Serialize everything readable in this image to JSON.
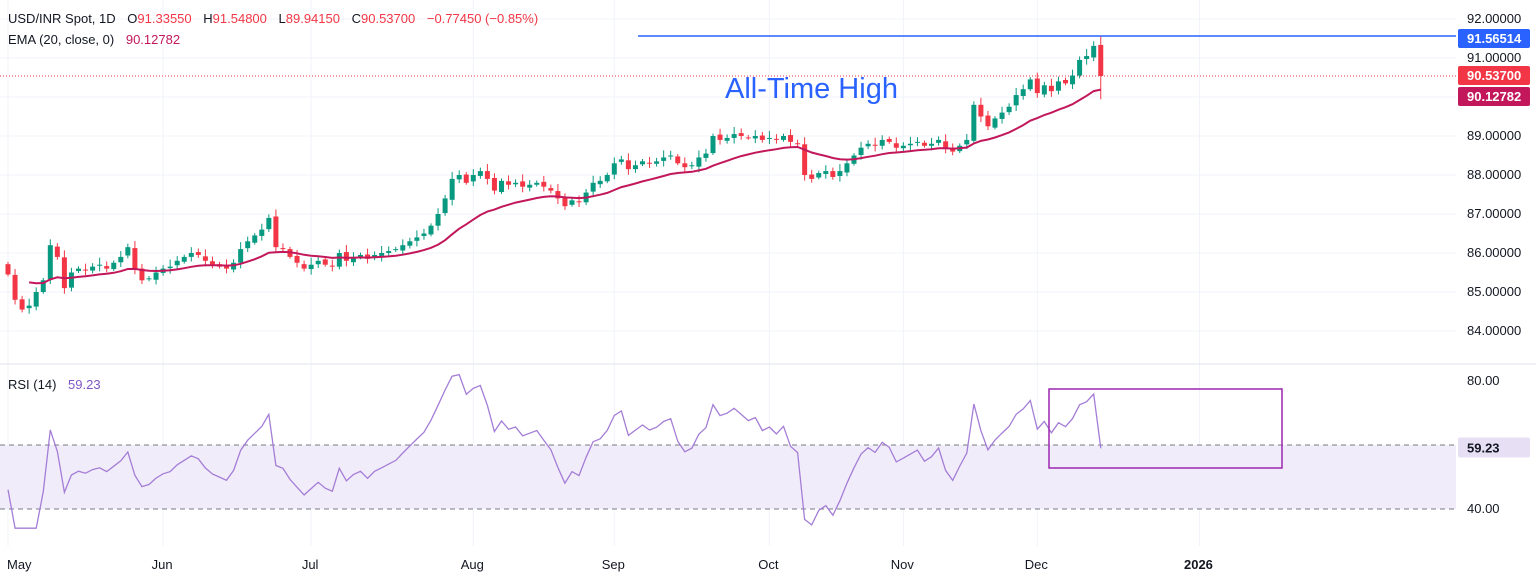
{
  "main_legend": {
    "symbol": "USD/INR Spot, 1D",
    "open_label": "O",
    "open": "91.33550",
    "high_label": "H",
    "high": "91.54800",
    "low_label": "L",
    "low": "89.94150",
    "close_label": "C",
    "close": "90.53700",
    "change": "−0.77450 (−0.85%)"
  },
  "ema_legend": {
    "label": "EMA (20, close, 0)",
    "value": "90.12782"
  },
  "rsi_legend": {
    "label": "RSI (14)",
    "value": "59.23"
  },
  "annotation": {
    "text": "All-Time High",
    "level": 91.56514
  },
  "colors": {
    "up": "#089981",
    "down": "#f23645",
    "ema": "#c2185b",
    "rsi": "#a47dd6",
    "ath_line": "#2962ff",
    "ath_text": "#2962ff",
    "rsi_band": "#f1ecfa",
    "rsi_box": "#9c27b0",
    "grid": "#f0f3fa"
  },
  "price_labels": [
    {
      "value": "91.56514",
      "color": "#2962ff"
    },
    {
      "value": "90.53700",
      "color": "#f23645"
    },
    {
      "value": "90.12782",
      "color": "#c2185b"
    }
  ],
  "rsi_label": {
    "value": "59.23",
    "color": "#e7e0f5"
  },
  "chart_data": {
    "type": "candlestick",
    "title": "USD/INR Spot, 1D",
    "y_ticks": [
      "92.00000",
      "91.00000",
      "90.00000",
      "89.00000",
      "88.00000",
      "87.00000",
      "86.00000",
      "85.00000",
      "84.00000"
    ],
    "ylim": [
      83.8,
      92.1
    ],
    "rsi_ticks": [
      "80.00",
      "40.00"
    ],
    "rsi_range": [
      34,
      82
    ],
    "rsi_band": [
      40,
      60
    ],
    "x_labels": [
      {
        "label": "May",
        "index": 0
      },
      {
        "label": "Jun",
        "index": 22
      },
      {
        "label": "Jul",
        "index": 43
      },
      {
        "label": "Aug",
        "index": 66
      },
      {
        "label": "Sep",
        "index": 86
      },
      {
        "label": "Oct",
        "index": 108
      },
      {
        "label": "Nov",
        "index": 127
      },
      {
        "label": "Dec",
        "index": 146
      },
      {
        "label": "2026",
        "index": 169
      }
    ],
    "closes": [
      85.45,
      84.8,
      84.55,
      84.65,
      85.0,
      85.3,
      86.2,
      85.9,
      85.1,
      85.5,
      85.6,
      85.55,
      85.65,
      85.7,
      85.6,
      85.75,
      85.9,
      86.15,
      85.6,
      85.3,
      85.35,
      85.5,
      85.6,
      85.65,
      85.8,
      85.9,
      86.0,
      85.95,
      85.8,
      85.7,
      85.65,
      85.6,
      85.75,
      86.1,
      86.3,
      86.45,
      86.6,
      86.9,
      86.15,
      86.1,
      85.9,
      85.75,
      85.6,
      85.7,
      85.8,
      85.7,
      85.65,
      86.0,
      85.8,
      85.9,
      85.95,
      85.85,
      85.95,
      86.0,
      86.05,
      86.1,
      86.2,
      86.3,
      86.4,
      86.5,
      86.7,
      87.0,
      87.4,
      87.9,
      88.0,
      87.8,
      88.0,
      88.1,
      87.9,
      87.6,
      87.85,
      87.75,
      87.8,
      87.7,
      87.75,
      87.8,
      87.7,
      87.6,
      87.4,
      87.2,
      87.35,
      87.3,
      87.55,
      87.8,
      87.85,
      88.0,
      88.3,
      88.4,
      88.15,
      88.25,
      88.35,
      88.3,
      88.35,
      88.45,
      88.5,
      88.3,
      88.2,
      88.25,
      88.45,
      88.55,
      89.0,
      88.9,
      88.95,
      89.05,
      89.0,
      88.95,
      89.0,
      88.9,
      88.95,
      88.9,
      89.0,
      88.85,
      88.8,
      88.0,
      87.9,
      88.05,
      88.1,
      87.95,
      88.1,
      88.3,
      88.5,
      88.7,
      88.8,
      88.75,
      88.9,
      88.85,
      88.7,
      88.75,
      88.8,
      88.85,
      88.75,
      88.8,
      88.9,
      88.7,
      88.6,
      88.75,
      88.9,
      89.8,
      89.5,
      89.25,
      89.45,
      89.6,
      89.75,
      90.05,
      90.2,
      90.45,
      90.1,
      90.3,
      90.15,
      90.4,
      90.35,
      90.55,
      90.95,
      91.05,
      91.31,
      90.54
    ]
  }
}
